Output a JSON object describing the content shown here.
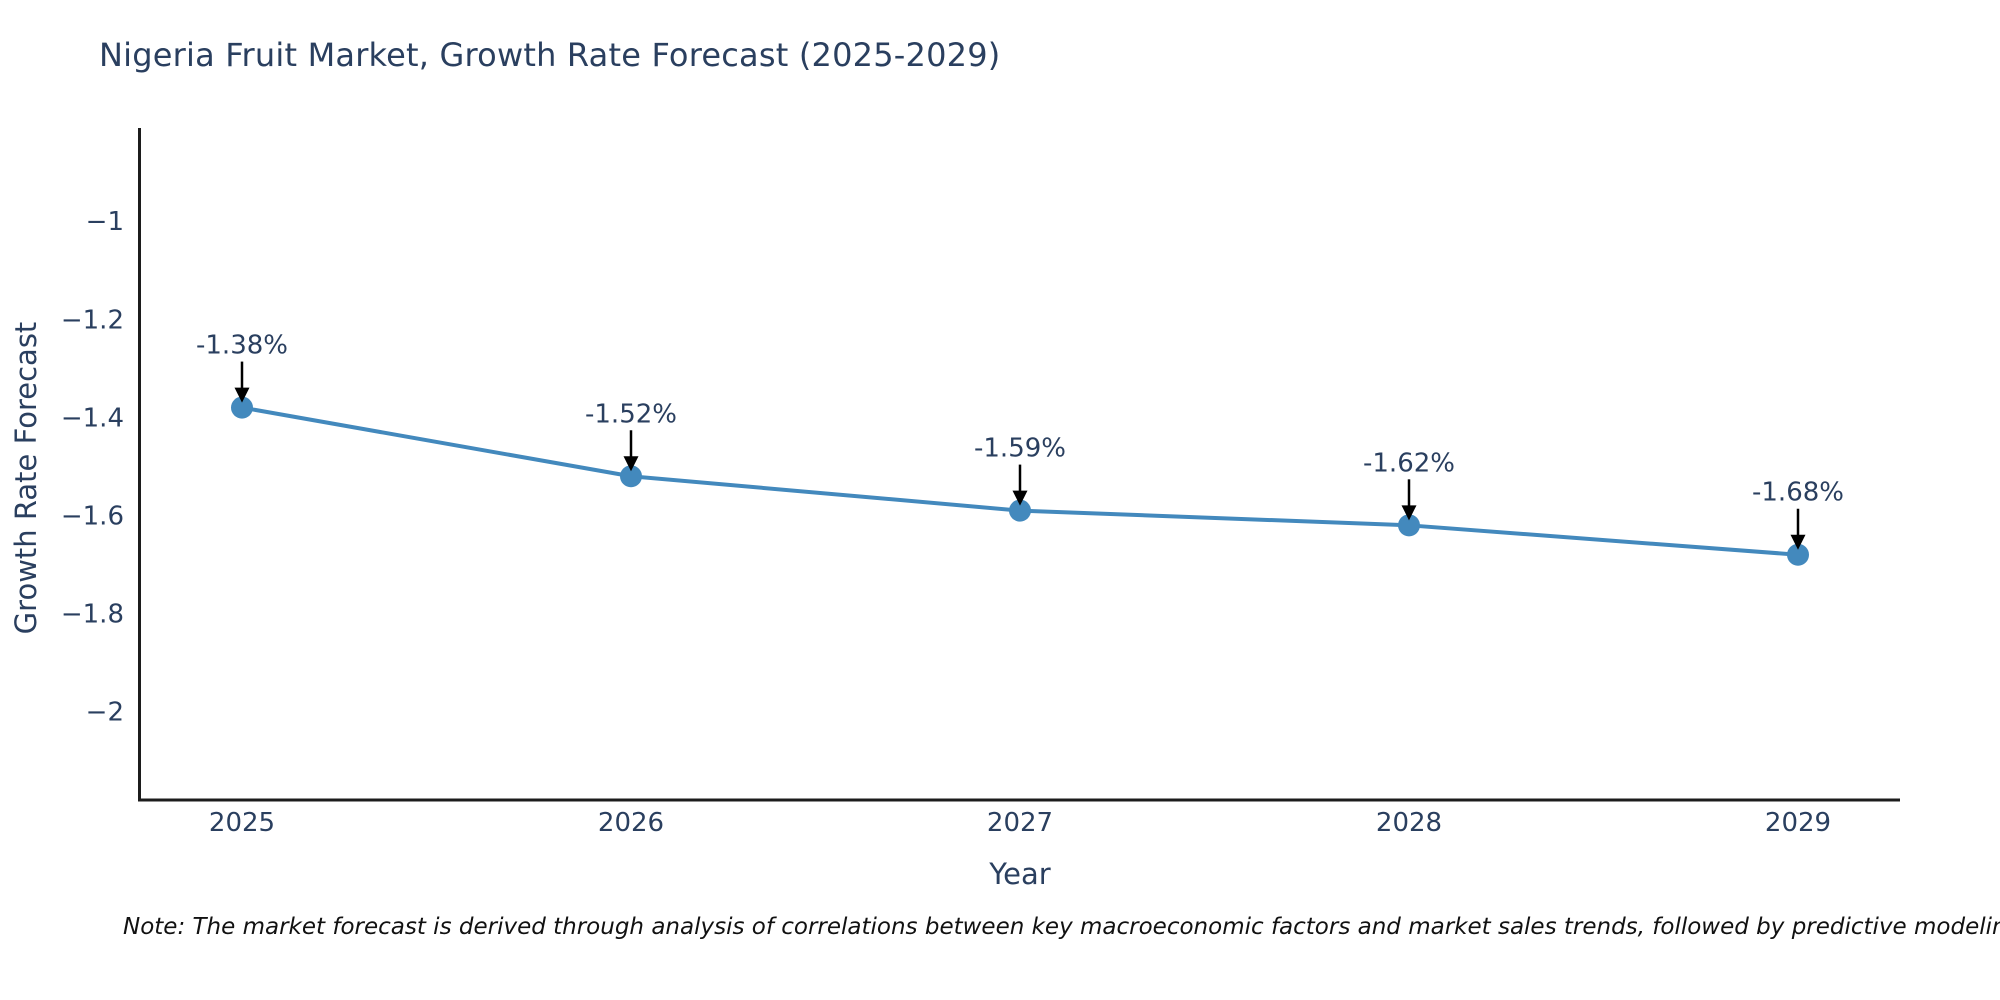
{
  "chart_data": {
    "type": "line",
    "title": "Nigeria Fruit Market, Growth Rate Forecast (2025-2029)",
    "xlabel": "Year",
    "ylabel": "Growth Rate Forecast",
    "categories": [
      "2025",
      "2026",
      "2027",
      "2028",
      "2029"
    ],
    "values": [
      -1.38,
      -1.52,
      -1.59,
      -1.62,
      -1.68
    ],
    "series": [
      {
        "name": "Growth Rate Forecast",
        "values": [
          -1.38,
          -1.52,
          -1.59,
          -1.62,
          -1.68
        ]
      }
    ],
    "data_labels": [
      "-1.38%",
      "-1.52%",
      "-1.59%",
      "-1.62%",
      "-1.68%"
    ],
    "yticks": [
      -1,
      -1.2,
      -1.4,
      -1.6,
      -1.8,
      -2
    ],
    "ytick_labels": [
      "−1",
      "−1.2",
      "−1.4",
      "−1.6",
      "−1.8",
      "−2"
    ],
    "ylim": [
      -2.18,
      -0.81
    ],
    "grid": false,
    "legend_position": "none",
    "marker_style": "circle",
    "annotation_arrows": true,
    "colors": {
      "line": "#4389bd",
      "marker": "#4389bd",
      "axis": "#1c1c1c",
      "text": "#2a3f5f",
      "arrow": "#000000",
      "background": "#ffffff"
    }
  },
  "note": "Note: The market forecast is derived through analysis of correlations between key macroeconomic factors and market sales trends, followed by predictive modeling to project future sa"
}
